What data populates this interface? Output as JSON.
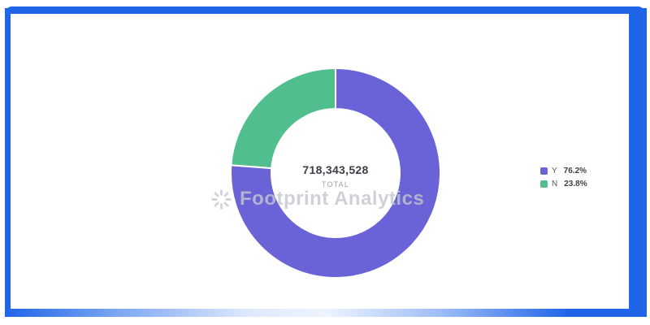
{
  "frame": {
    "border_color": "#2064e8"
  },
  "chart_data": {
    "type": "pie",
    "subtype": "donut",
    "title": "",
    "categories": [
      "Y",
      "N"
    ],
    "values": [
      76.2,
      23.8
    ],
    "colors": [
      "#6a63d8",
      "#51be8d"
    ],
    "center": {
      "total_value": "718,343,528",
      "total_label": "TOTAL"
    },
    "legend": {
      "position": "right",
      "entries": [
        {
          "label": "Y",
          "percent": "76.2%"
        },
        {
          "label": "N",
          "percent": "23.8%"
        }
      ]
    }
  },
  "watermark": {
    "text": "Footprint Analytics"
  }
}
